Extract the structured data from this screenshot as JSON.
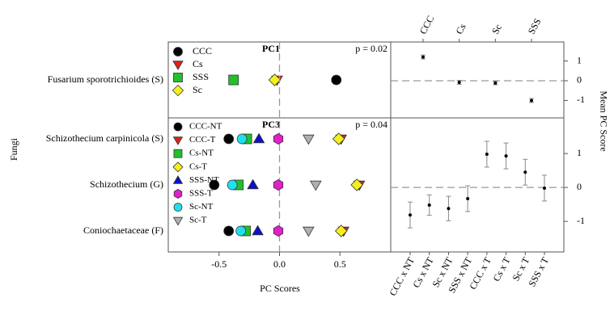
{
  "chart_data": [
    {
      "type": "scatter",
      "title": "PC1",
      "annotation": "p = 0.02",
      "y_label": "Fungi",
      "categories": [
        "Fusarium sporotrichioides (S)"
      ],
      "xlim": [
        -0.92,
        0.92
      ],
      "series": [
        {
          "name": "CCC",
          "color": "#000000",
          "marker": "circle",
          "values": [
            0.47
          ]
        },
        {
          "name": "Cs",
          "color": "#e0201b",
          "marker": "triangle-down",
          "values": [
            -0.02
          ]
        },
        {
          "name": "SSS",
          "color": "#22c02a",
          "marker": "square",
          "values": [
            -0.38
          ]
        },
        {
          "name": "Sc",
          "color": "#f5f01c",
          "marker": "diamond",
          "values": [
            -0.04
          ]
        }
      ]
    },
    {
      "type": "scatter",
      "title": "PC3",
      "annotation": "p = 0.04",
      "x_label": "PC Scores",
      "categories": [
        "Schizothecium carpinicola (S)",
        "Schizothecium (G)",
        "Coniochaetaceae (F)"
      ],
      "xlim": [
        -0.92,
        0.92
      ],
      "xticks": [
        -0.5,
        {
          "value": 0,
          "label": "0.0"
        },
        0.5
      ],
      "series": [
        {
          "name": "CCC-NT",
          "color": "#000000",
          "marker": "circle",
          "values": [
            -0.42,
            -0.54,
            -0.42
          ]
        },
        {
          "name": "CCC-T",
          "color": "#e0201b",
          "marker": "triangle-down",
          "values": [
            0.51,
            0.66,
            0.53
          ]
        },
        {
          "name": "Cs-NT",
          "color": "#22c02a",
          "marker": "square",
          "values": [
            -0.27,
            -0.34,
            -0.28
          ]
        },
        {
          "name": "Cs-T",
          "color": "#f5f01c",
          "marker": "diamond",
          "values": [
            0.49,
            0.64,
            0.51
          ]
        },
        {
          "name": "SSS-NT",
          "color": "#1010c8",
          "marker": "triangle-up",
          "values": [
            -0.17,
            -0.22,
            -0.18
          ]
        },
        {
          "name": "SSS-T",
          "color": "#e020c8",
          "marker": "hexagon",
          "values": [
            -0.01,
            -0.01,
            -0.01
          ]
        },
        {
          "name": "Sc-NT",
          "color": "#20e0f0",
          "marker": "circle",
          "values": [
            -0.31,
            -0.39,
            -0.32
          ]
        },
        {
          "name": "Sc-T",
          "color": "#b0b0b0",
          "marker": "triangle-down",
          "values": [
            0.24,
            0.3,
            0.24
          ]
        }
      ]
    },
    {
      "type": "errorbar",
      "y_label": "Mean PC Score",
      "label_side": "top",
      "categories": [
        "CCC",
        "Cs",
        "Sc",
        "SSS"
      ],
      "values": [
        1.2,
        -0.08,
        -0.12,
        -1.0
      ],
      "errors": [
        0.1,
        0.1,
        0.08,
        0.1
      ],
      "ylim": [
        -1.88,
        1.96
      ],
      "yticks": [
        -1,
        0,
        1
      ]
    },
    {
      "type": "errorbar",
      "label_side": "bottom",
      "categories": [
        "CCC x NT",
        "Cs x NT",
        "Sc x NT",
        "SSS x NT",
        "CCC x T",
        "Cs x T",
        "Sc x T",
        "SSS x T"
      ],
      "values": [
        -0.81,
        -0.52,
        -0.62,
        -0.33,
        0.98,
        0.93,
        0.45,
        -0.02
      ],
      "errors": [
        0.38,
        0.3,
        0.36,
        0.38,
        0.38,
        0.38,
        0.38,
        0.38
      ],
      "ylim": [
        -1.9,
        2.05
      ],
      "yticks": [
        -1,
        0,
        1
      ]
    }
  ]
}
